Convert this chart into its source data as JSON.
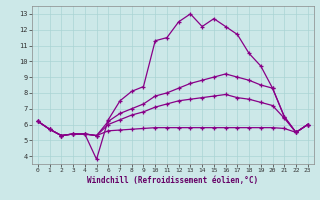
{
  "title": "",
  "xlabel": "Windchill (Refroidissement éolien,°C)",
  "bg_color": "#cce8e8",
  "line_color": "#880088",
  "xlim": [
    -0.5,
    23.5
  ],
  "ylim": [
    3.5,
    13.5
  ],
  "xticks": [
    0,
    1,
    2,
    3,
    4,
    5,
    6,
    7,
    8,
    9,
    10,
    11,
    12,
    13,
    14,
    15,
    16,
    17,
    18,
    19,
    20,
    21,
    22,
    23
  ],
  "yticks": [
    4,
    5,
    6,
    7,
    8,
    9,
    10,
    11,
    12,
    13
  ],
  "series": [
    {
      "x": [
        0,
        1,
        2,
        3,
        4,
        5,
        6,
        7,
        8,
        9,
        10,
        11,
        12,
        13,
        14,
        15,
        16,
        17,
        18,
        19,
        20,
        21,
        22,
        23
      ],
      "y": [
        6.2,
        5.7,
        5.3,
        5.4,
        5.4,
        3.8,
        6.3,
        7.5,
        8.1,
        8.4,
        11.3,
        11.5,
        12.5,
        13.0,
        12.2,
        12.7,
        12.2,
        11.7,
        10.5,
        9.7,
        8.3,
        6.5,
        5.5,
        6.0
      ]
    },
    {
      "x": [
        0,
        1,
        2,
        3,
        4,
        5,
        6,
        7,
        8,
        9,
        10,
        11,
        12,
        13,
        14,
        15,
        16,
        17,
        18,
        19,
        20,
        21,
        22,
        23
      ],
      "y": [
        6.2,
        5.7,
        5.3,
        5.4,
        5.4,
        5.3,
        6.2,
        6.7,
        7.0,
        7.3,
        7.8,
        8.0,
        8.3,
        8.6,
        8.8,
        9.0,
        9.2,
        9.0,
        8.8,
        8.5,
        8.3,
        6.5,
        5.5,
        6.0
      ]
    },
    {
      "x": [
        0,
        1,
        2,
        3,
        4,
        5,
        6,
        7,
        8,
        9,
        10,
        11,
        12,
        13,
        14,
        15,
        16,
        17,
        18,
        19,
        20,
        21,
        22,
        23
      ],
      "y": [
        6.2,
        5.7,
        5.3,
        5.4,
        5.4,
        5.3,
        6.0,
        6.3,
        6.6,
        6.8,
        7.1,
        7.3,
        7.5,
        7.6,
        7.7,
        7.8,
        7.9,
        7.7,
        7.6,
        7.4,
        7.2,
        6.4,
        5.5,
        6.0
      ]
    },
    {
      "x": [
        0,
        1,
        2,
        3,
        4,
        5,
        6,
        7,
        8,
        9,
        10,
        11,
        12,
        13,
        14,
        15,
        16,
        17,
        18,
        19,
        20,
        21,
        22,
        23
      ],
      "y": [
        6.2,
        5.7,
        5.3,
        5.4,
        5.4,
        5.3,
        5.6,
        5.65,
        5.7,
        5.75,
        5.8,
        5.8,
        5.8,
        5.8,
        5.8,
        5.8,
        5.8,
        5.8,
        5.8,
        5.8,
        5.8,
        5.75,
        5.5,
        6.0
      ]
    }
  ],
  "grid_color": "#aad4d4",
  "spine_color": "#888888",
  "xlabel_color": "#660066",
  "tick_color": "#333333"
}
